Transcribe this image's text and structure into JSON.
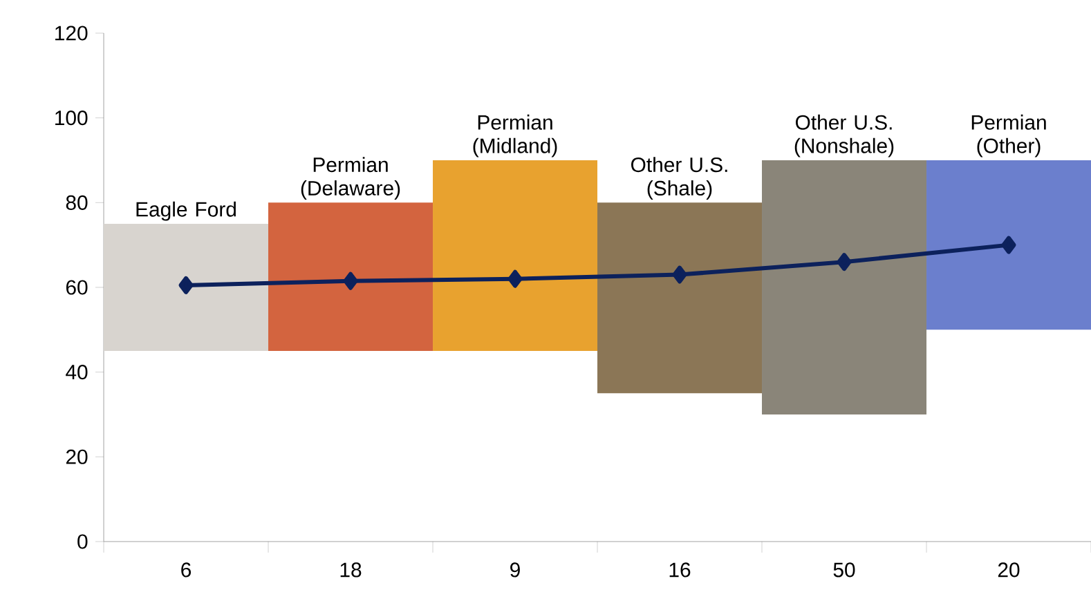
{
  "chart_data": {
    "type": "bar",
    "categories": [
      "6",
      "18",
      "9",
      "16",
      "50",
      "20"
    ],
    "series": [
      {
        "type": "bar",
        "colors": [
          "#d8d4cf",
          "#d3643f",
          "#e8a22f",
          "#8b7656",
          "#8a8579",
          "#6b7fcd"
        ],
        "base": [
          45,
          45,
          45,
          35,
          30,
          50
        ],
        "values": [
          30,
          35,
          45,
          45,
          60,
          40
        ]
      },
      {
        "type": "line",
        "color": "#0c215c",
        "values": [
          60.5,
          61.5,
          62,
          63,
          66,
          70
        ]
      }
    ],
    "marker": "diamond",
    "ylim": [
      0,
      120
    ],
    "yticks": [
      0,
      20,
      40,
      60,
      80,
      100,
      120
    ],
    "annotations": [
      {
        "text": "Eagle Ford",
        "x": "6",
        "y": 75
      },
      {
        "text": "Permian (Delaware)",
        "x": "18",
        "y": 80
      },
      {
        "text": "Permian (Midland)",
        "x": "9",
        "y": 90
      },
      {
        "text": "Other U.S. (Shale)",
        "x": "16",
        "y": 80
      },
      {
        "text": "Other U.S. (Nonshale)",
        "x": "50",
        "y": 90
      },
      {
        "text": "Permian (Other)",
        "x": "20",
        "y": 90
      }
    ]
  }
}
